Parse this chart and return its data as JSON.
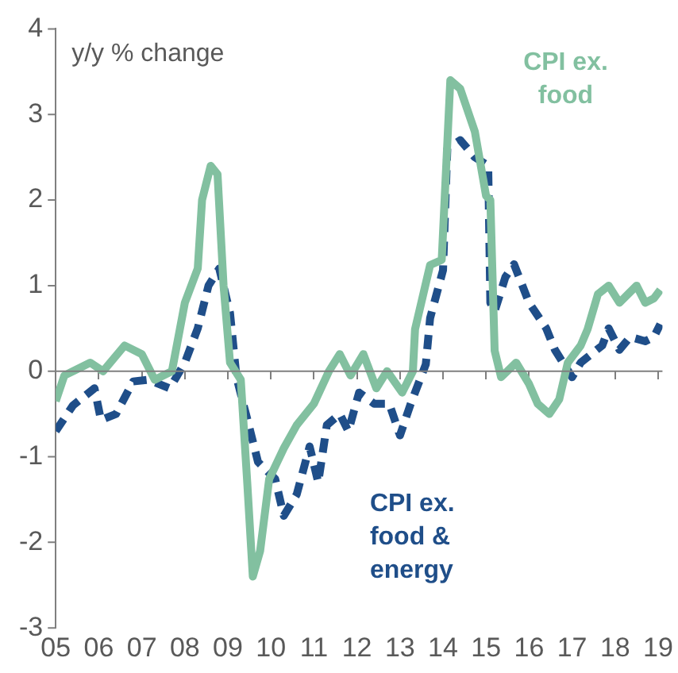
{
  "chart_data": {
    "type": "line",
    "ylabel": "y/y % change",
    "x": [
      2005.0,
      2005.2,
      2005.4,
      2005.8,
      2006.1,
      2006.6,
      2007.0,
      2007.3,
      2007.7,
      2008.0,
      2008.3,
      2008.4,
      2008.6,
      2008.76,
      2008.9,
      2009.05,
      2009.3,
      2009.45,
      2009.58,
      2009.75,
      2009.96,
      2010.3,
      2010.6,
      2011.0,
      2011.35,
      2011.6,
      2011.85,
      2012.15,
      2012.45,
      2012.7,
      2013.05,
      2013.3,
      2013.35,
      2013.7,
      2013.97,
      2014.17,
      2014.4,
      2014.74,
      2015.0,
      2015.1,
      2015.2,
      2015.35,
      2015.7,
      2016.0,
      2016.2,
      2016.47,
      2016.7,
      2016.9,
      2017.2,
      2017.36,
      2017.6,
      2017.85,
      2018.1,
      2018.3,
      2018.5,
      2018.7,
      2018.9,
      2019.05
    ],
    "series": [
      {
        "name": "CPI ex. food",
        "color": "#82c0a0",
        "values": [
          -0.35,
          -0.05,
          0,
          0.1,
          0,
          0.3,
          0.2,
          -0.1,
          0,
          0.8,
          1.2,
          2.0,
          2.4,
          2.3,
          1.0,
          0.1,
          -0.1,
          -1.3,
          -2.4,
          -2.1,
          -1.26,
          -0.9,
          -0.63,
          -0.38,
          0,
          0.2,
          -0.05,
          0.2,
          -0.2,
          0,
          -0.25,
          0,
          0.49,
          1.24,
          1.3,
          3.4,
          3.3,
          2.8,
          2.05,
          2.0,
          0.24,
          -0.07,
          0.1,
          -0.15,
          -0.38,
          -0.5,
          -0.33,
          0.1,
          0.3,
          0.49,
          0.9,
          1.0,
          0.8,
          0.9,
          1.0,
          0.8,
          0.85,
          0.95
        ]
      },
      {
        "name": "CPI ex. food & energy",
        "color": "#1f4e89",
        "line_style": "dashed",
        "x": [
          2005.0,
          2005.4,
          2005.9,
          2006.05,
          2006.4,
          2006.8,
          2007.15,
          2007.65,
          2008.0,
          2008.3,
          2008.55,
          2008.8,
          2009.05,
          2009.2,
          2009.45,
          2009.7,
          2010.1,
          2010.3,
          2010.6,
          2010.9,
          2011.1,
          2011.3,
          2011.6,
          2011.8,
          2012.05,
          2012.4,
          2012.75,
          2013.0,
          2013.25,
          2013.6,
          2013.7,
          2014.0,
          2014.1,
          2014.4,
          2014.74,
          2015.05,
          2015.1,
          2015.2,
          2015.45,
          2015.65,
          2016.0,
          2016.4,
          2016.6,
          2017.0,
          2017.2,
          2017.7,
          2017.85,
          2018.1,
          2018.35,
          2018.7,
          2018.9,
          2019.05
        ],
        "values": [
          -0.7,
          -0.4,
          -0.2,
          -0.57,
          -0.5,
          -0.12,
          -0.1,
          -0.2,
          0.1,
          0.5,
          1.0,
          1.2,
          0.68,
          -0.07,
          -0.56,
          -1.06,
          -1.26,
          -1.69,
          -1.44,
          -0.88,
          -1.3,
          -0.63,
          -0.5,
          -0.7,
          -0.25,
          -0.38,
          -0.38,
          -0.75,
          -0.38,
          0.08,
          0.62,
          1.18,
          2.6,
          2.7,
          2.5,
          2.4,
          0.8,
          0.7,
          1.1,
          1.25,
          0.8,
          0.5,
          0.25,
          -0.07,
          0.1,
          0.3,
          0.5,
          0.25,
          0.4,
          0.35,
          0.4,
          0.55
        ]
      }
    ],
    "xlim": [
      2005,
      2019.1
    ],
    "xticks": [
      {
        "value": 2005,
        "label": "05"
      },
      {
        "value": 2006,
        "label": "06"
      },
      {
        "value": 2007,
        "label": "07"
      },
      {
        "value": 2008,
        "label": "08"
      },
      {
        "value": 2009,
        "label": "09"
      },
      {
        "value": 2010,
        "label": "10"
      },
      {
        "value": 2011,
        "label": "11"
      },
      {
        "value": 2012,
        "label": "12"
      },
      {
        "value": 2013,
        "label": "13"
      },
      {
        "value": 2014,
        "label": "14"
      },
      {
        "value": 2015,
        "label": "15"
      },
      {
        "value": 2016,
        "label": "16"
      },
      {
        "value": 2017,
        "label": "17"
      },
      {
        "value": 2018,
        "label": "18"
      },
      {
        "value": 2019,
        "label": "19"
      }
    ],
    "ylim": [
      -3,
      4
    ],
    "yticks": [
      -3,
      -2,
      -1,
      0,
      1,
      2,
      3,
      4
    ],
    "ref_lines": [
      {
        "axis": "y",
        "value": 0,
        "color": "#7f7f7f"
      }
    ],
    "grid": false,
    "legend": false,
    "marker": "none"
  }
}
